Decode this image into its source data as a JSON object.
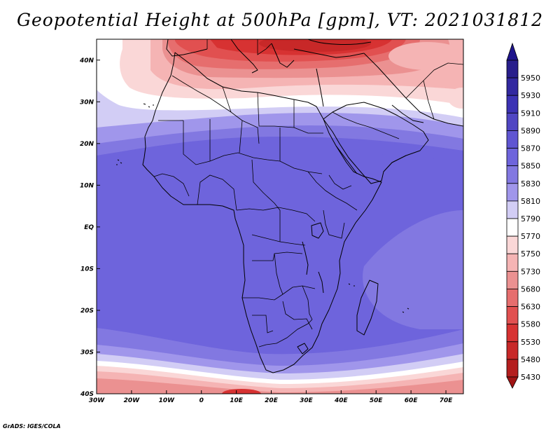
{
  "title": "Geopotential Height at 500hPa [gpm], VT: 2021031812",
  "credit": "GrADS: IGES/COLA",
  "map": {
    "lon_range": [
      -30,
      75
    ],
    "lat_range": [
      -40,
      45
    ],
    "lon_ticks": [
      {
        "value": -30,
        "label": "30W"
      },
      {
        "value": -20,
        "label": "20W"
      },
      {
        "value": -10,
        "label": "10W"
      },
      {
        "value": 0,
        "label": "0"
      },
      {
        "value": 10,
        "label": "10E"
      },
      {
        "value": 20,
        "label": "20E"
      },
      {
        "value": 30,
        "label": "30E"
      },
      {
        "value": 40,
        "label": "40E"
      },
      {
        "value": 50,
        "label": "50E"
      },
      {
        "value": 60,
        "label": "60E"
      },
      {
        "value": 70,
        "label": "70E"
      }
    ],
    "lat_ticks": [
      {
        "value": 40,
        "label": "40N"
      },
      {
        "value": 30,
        "label": "30N"
      },
      {
        "value": 20,
        "label": "20N"
      },
      {
        "value": 10,
        "label": "10N"
      },
      {
        "value": 0,
        "label": "EQ"
      },
      {
        "value": -10,
        "label": "10S"
      },
      {
        "value": -20,
        "label": "20S"
      },
      {
        "value": -30,
        "label": "30S"
      },
      {
        "value": -40,
        "label": "40S"
      }
    ]
  },
  "colorbar": {
    "levels": [
      {
        "label": "5950",
        "color": "#281e8c"
      },
      {
        "label": "5930",
        "color": "#3228a0"
      },
      {
        "label": "5910",
        "color": "#3c32b4"
      },
      {
        "label": "5890",
        "color": "#5046c3"
      },
      {
        "label": "5870",
        "color": "#5f55d2"
      },
      {
        "label": "5850",
        "color": "#6e64dc"
      },
      {
        "label": "5830",
        "color": "#8278e1"
      },
      {
        "label": "5810",
        "color": "#a096eb"
      },
      {
        "label": "5790",
        "color": "#d2cdf5"
      },
      {
        "label": "5770",
        "color": "#ffffff"
      },
      {
        "label": "5750",
        "color": "#fad7d7"
      },
      {
        "label": "5730",
        "color": "#f5b4b4"
      },
      {
        "label": "5680",
        "color": "#eb9191"
      },
      {
        "label": "5630",
        "color": "#e66e6e"
      },
      {
        "label": "5580",
        "color": "#e15050"
      },
      {
        "label": "5530",
        "color": "#d73232"
      },
      {
        "label": "5480",
        "color": "#c82828"
      },
      {
        "label": "5430",
        "color": "#b41e1e"
      }
    ],
    "top_arrow_color": "#1e148c",
    "bottom_arrow_color": "#a01414"
  }
}
